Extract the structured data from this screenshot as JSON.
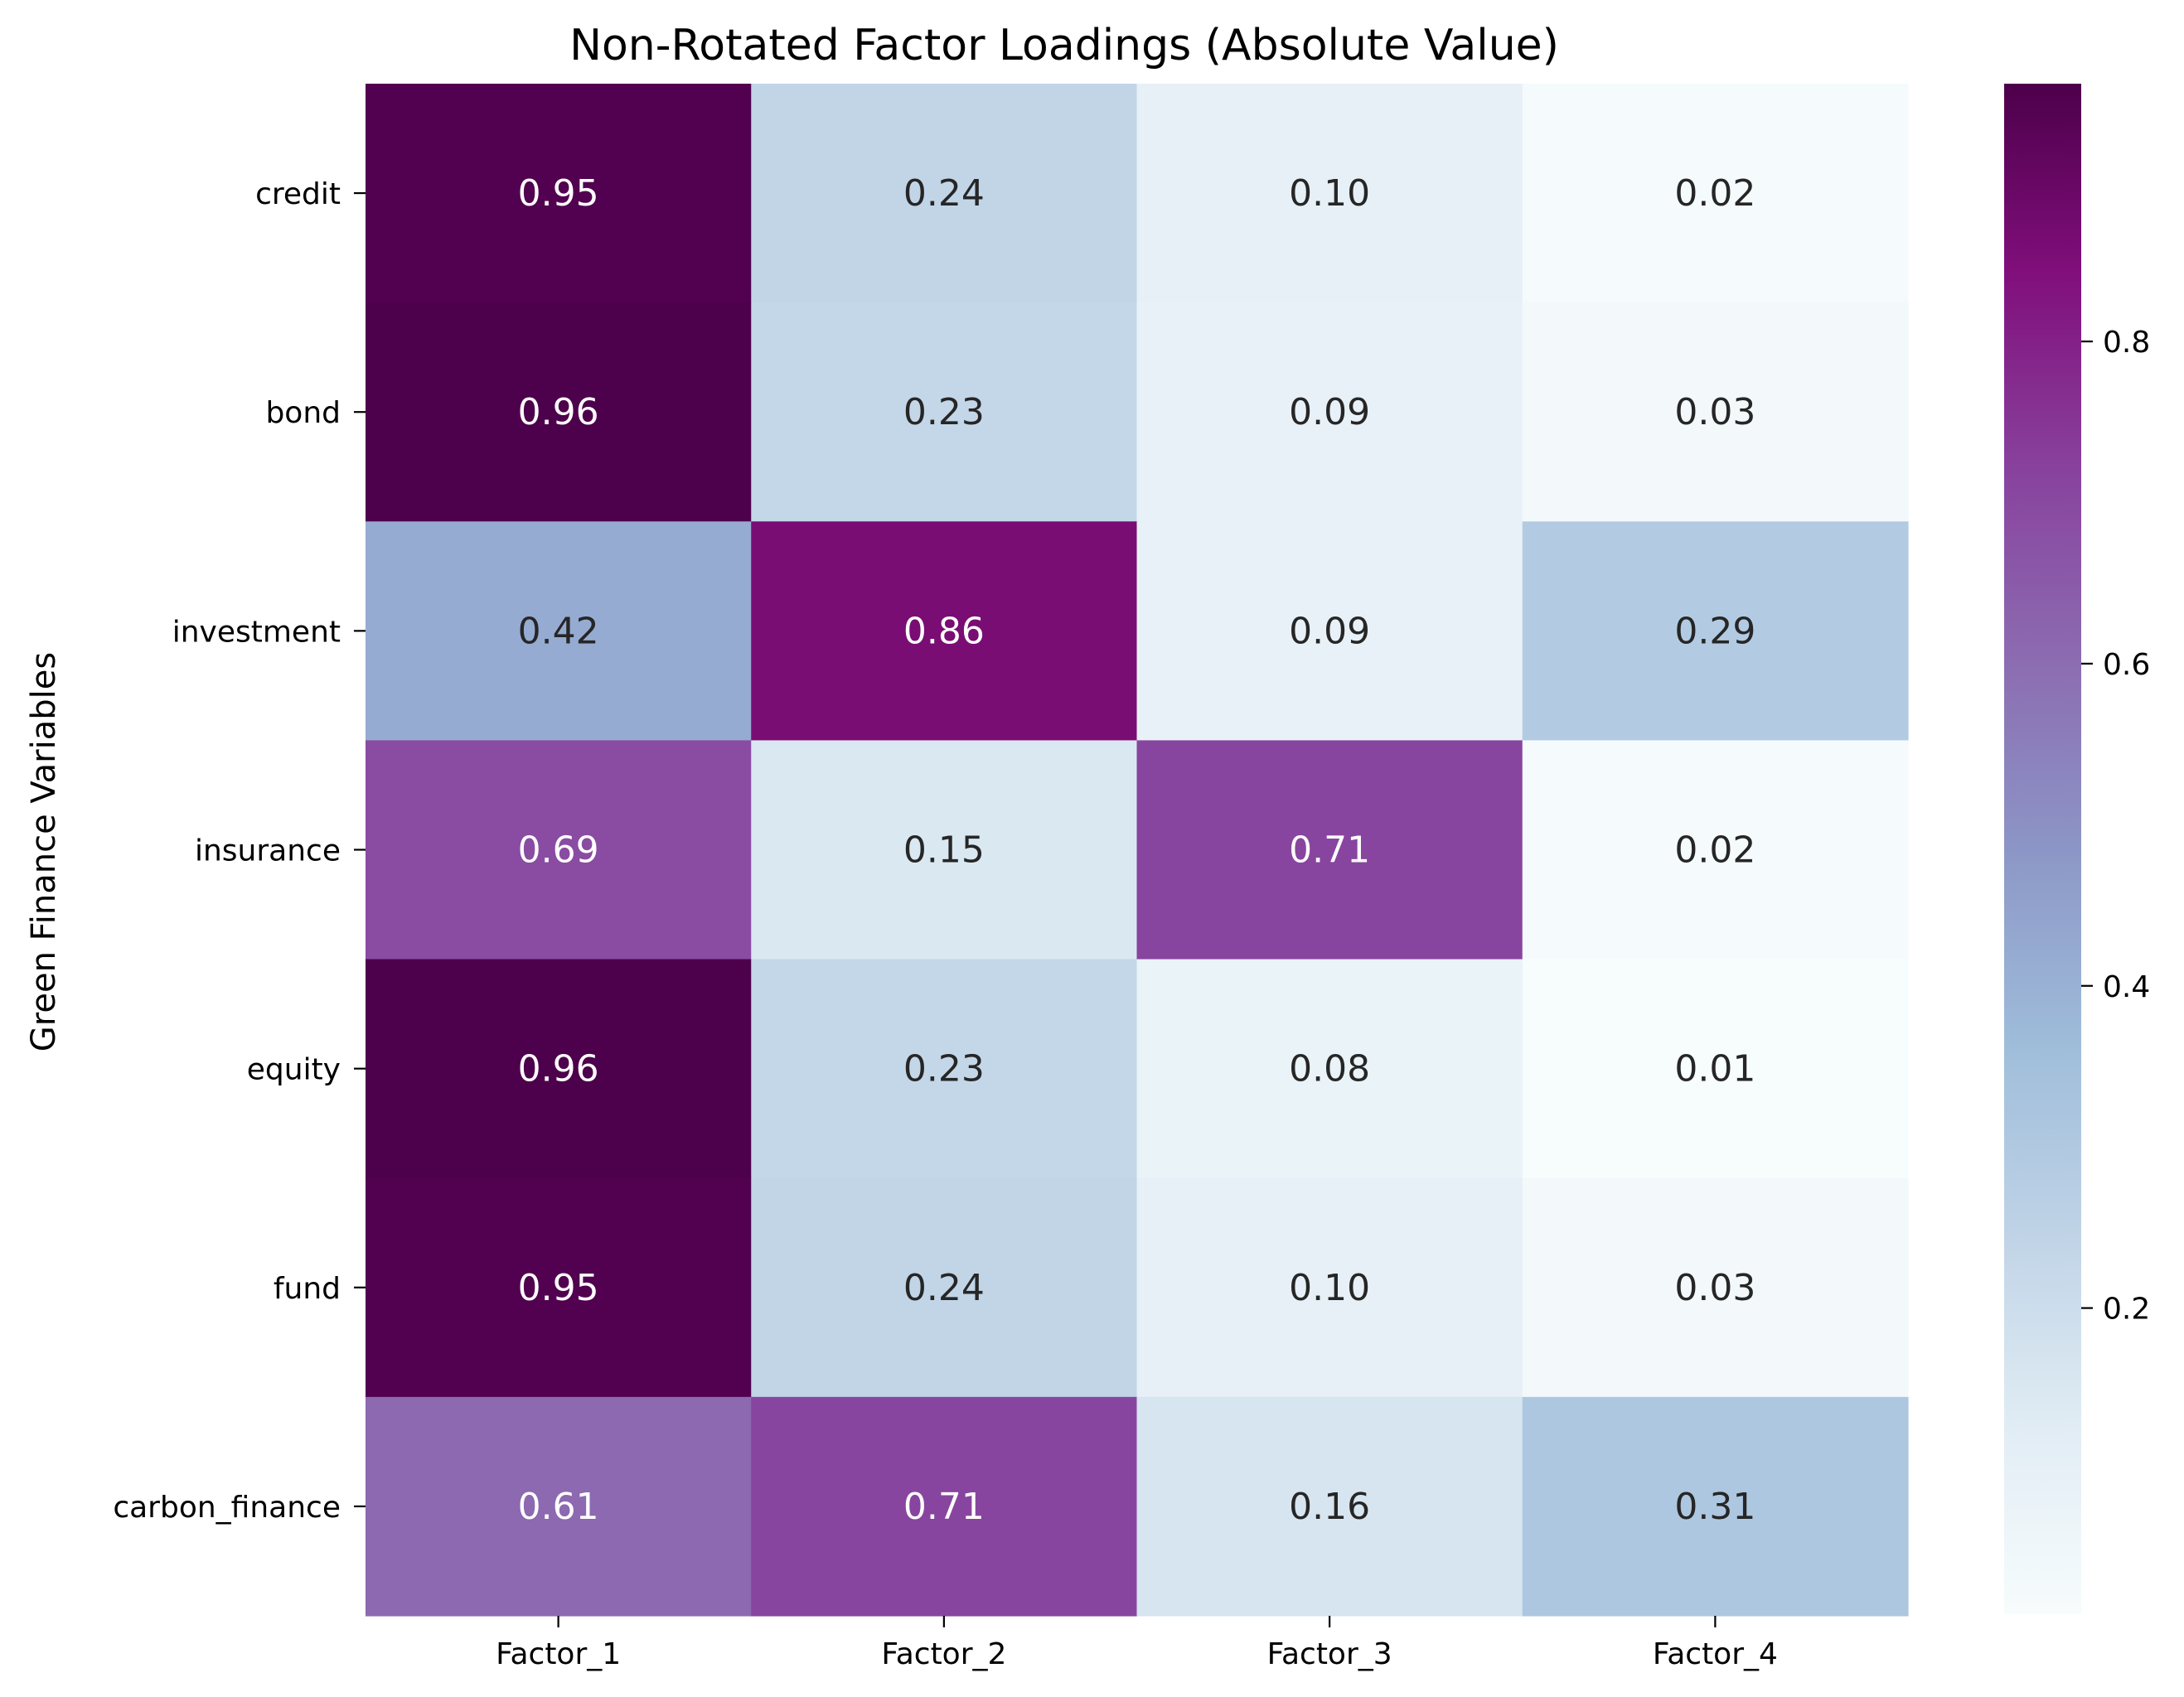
{
  "chart_data": {
    "type": "heatmap",
    "title": "Non-Rotated Factor Loadings (Absolute Value)",
    "xlabel": "",
    "ylabel": "Green Finance Variables",
    "columns": [
      "Factor_1",
      "Factor_2",
      "Factor_3",
      "Factor_4"
    ],
    "rows": [
      "credit",
      "bond",
      "investment",
      "insurance",
      "equity",
      "fund",
      "carbon_finance"
    ],
    "values": [
      [
        0.95,
        0.24,
        0.1,
        0.02
      ],
      [
        0.96,
        0.23,
        0.09,
        0.03
      ],
      [
        0.42,
        0.86,
        0.09,
        0.29
      ],
      [
        0.69,
        0.15,
        0.71,
        0.02
      ],
      [
        0.96,
        0.23,
        0.08,
        0.01
      ],
      [
        0.95,
        0.24,
        0.1,
        0.03
      ],
      [
        0.61,
        0.71,
        0.16,
        0.31
      ]
    ],
    "value_labels": [
      [
        "0.95",
        "0.24",
        "0.10",
        "0.02"
      ],
      [
        "0.96",
        "0.23",
        "0.09",
        "0.03"
      ],
      [
        "0.42",
        "0.86",
        "0.09",
        "0.29"
      ],
      [
        "0.69",
        "0.15",
        "0.71",
        "0.02"
      ],
      [
        "0.96",
        "0.23",
        "0.08",
        "0.01"
      ],
      [
        "0.95",
        "0.24",
        "0.10",
        "0.03"
      ],
      [
        "0.61",
        "0.71",
        "0.16",
        "0.31"
      ]
    ],
    "colormap": "BuPu",
    "colorbar": {
      "range": [
        0.01,
        0.96
      ],
      "ticks": [
        0.2,
        0.4,
        0.6,
        0.8
      ],
      "tick_labels": [
        "0.2",
        "0.4",
        "0.6",
        "0.8"
      ]
    },
    "annotation_colors": {
      "dark": "#262626",
      "light": "#ffffff"
    },
    "grid": false
  }
}
